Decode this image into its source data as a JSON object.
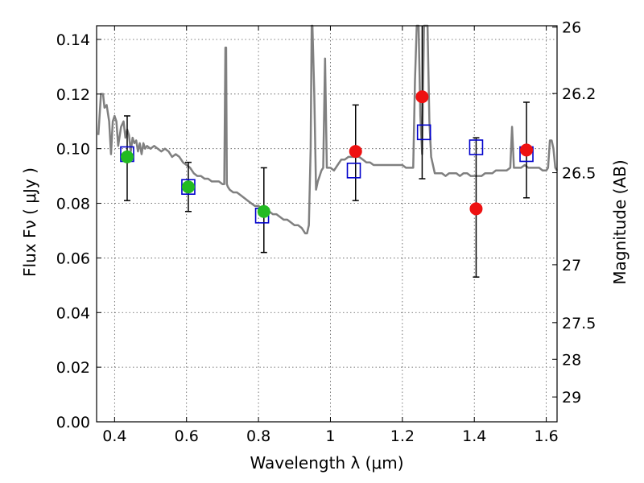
{
  "chart_data": {
    "type": "scatter",
    "title": "",
    "xlabel": "Wavelength  λ (μm)",
    "ylabel": "Flux  Fν  ( μJy )",
    "ylabel_right": "Magnitude (AB)",
    "xlim": [
      0.35,
      1.63
    ],
    "ylim": [
      0.0,
      0.145
    ],
    "grid": true,
    "x_ticks": [
      0.4,
      0.6,
      0.8,
      1.0,
      1.2,
      1.4,
      1.6
    ],
    "x_tick_labels": [
      "0.4",
      "0.6",
      "0.8",
      "1",
      "1.2",
      "1.4",
      "1.6"
    ],
    "y_ticks": [
      0.0,
      0.02,
      0.04,
      0.06,
      0.08,
      0.1,
      0.12,
      0.14
    ],
    "y_tick_labels": [
      "0.00",
      "0.02",
      "0.04",
      "0.06",
      "0.08",
      "0.10",
      "0.12",
      "0.14"
    ],
    "right_ticks": [
      {
        "label": "26",
        "flux": 0.1445
      },
      {
        "label": "26.2",
        "flux": 0.1202
      },
      {
        "label": "26.5",
        "flux": 0.0912
      },
      {
        "label": "27",
        "flux": 0.0575
      },
      {
        "label": "27.5",
        "flux": 0.0363
      },
      {
        "label": "28",
        "flux": 0.0229
      },
      {
        "label": "29",
        "flux": 0.0091
      }
    ],
    "colors": {
      "spectrum": "#808080",
      "model": "#0000cc",
      "green": "#22bb22",
      "red": "#ee1111",
      "grid": "#555555",
      "errorbar": "#000000"
    },
    "series": [
      {
        "name": "model template spectrum",
        "kind": "line",
        "x": [
          0.355,
          0.362,
          0.368,
          0.372,
          0.378,
          0.385,
          0.39,
          0.395,
          0.4,
          0.405,
          0.41,
          0.418,
          0.425,
          0.43,
          0.435,
          0.44,
          0.445,
          0.45,
          0.455,
          0.46,
          0.465,
          0.47,
          0.475,
          0.48,
          0.485,
          0.49,
          0.5,
          0.51,
          0.52,
          0.53,
          0.54,
          0.55,
          0.56,
          0.57,
          0.58,
          0.59,
          0.6,
          0.61,
          0.62,
          0.63,
          0.64,
          0.65,
          0.66,
          0.67,
          0.68,
          0.69,
          0.7,
          0.705,
          0.708,
          0.71,
          0.712,
          0.715,
          0.72,
          0.73,
          0.74,
          0.75,
          0.76,
          0.77,
          0.78,
          0.79,
          0.8,
          0.81,
          0.82,
          0.83,
          0.84,
          0.85,
          0.86,
          0.87,
          0.88,
          0.89,
          0.9,
          0.91,
          0.92,
          0.93,
          0.935,
          0.94,
          0.945,
          0.948,
          0.95,
          0.955,
          0.96,
          0.965,
          0.97,
          0.975,
          0.98,
          0.985,
          0.99,
          0.995,
          1.0,
          1.01,
          1.02,
          1.03,
          1.04,
          1.05,
          1.06,
          1.07,
          1.08,
          1.09,
          1.1,
          1.11,
          1.12,
          1.13,
          1.14,
          1.15,
          1.16,
          1.17,
          1.18,
          1.19,
          1.2,
          1.21,
          1.22,
          1.23,
          1.235,
          1.24,
          1.245,
          1.25,
          1.255,
          1.26,
          1.265,
          1.27,
          1.275,
          1.28,
          1.29,
          1.3,
          1.31,
          1.32,
          1.33,
          1.34,
          1.35,
          1.36,
          1.37,
          1.38,
          1.39,
          1.4,
          1.41,
          1.42,
          1.43,
          1.44,
          1.45,
          1.46,
          1.47,
          1.48,
          1.49,
          1.5,
          1.505,
          1.51,
          1.52,
          1.53,
          1.54,
          1.55,
          1.56,
          1.57,
          1.58,
          1.59,
          1.6,
          1.605,
          1.61,
          1.615,
          1.62,
          1.625,
          1.63
        ],
        "y": [
          0.105,
          0.12,
          0.12,
          0.115,
          0.116,
          0.11,
          0.098,
          0.11,
          0.112,
          0.11,
          0.101,
          0.108,
          0.11,
          0.104,
          0.107,
          0.105,
          0.099,
          0.104,
          0.102,
          0.103,
          0.099,
          0.102,
          0.098,
          0.102,
          0.1,
          0.101,
          0.1,
          0.101,
          0.1,
          0.099,
          0.1,
          0.099,
          0.097,
          0.098,
          0.097,
          0.095,
          0.094,
          0.093,
          0.091,
          0.09,
          0.09,
          0.089,
          0.089,
          0.088,
          0.088,
          0.088,
          0.087,
          0.087,
          0.137,
          0.137,
          0.087,
          0.086,
          0.085,
          0.084,
          0.084,
          0.083,
          0.082,
          0.081,
          0.08,
          0.079,
          0.079,
          0.078,
          0.077,
          0.077,
          0.076,
          0.076,
          0.075,
          0.074,
          0.074,
          0.073,
          0.072,
          0.072,
          0.071,
          0.069,
          0.069,
          0.072,
          0.1,
          0.145,
          0.145,
          0.12,
          0.085,
          0.088,
          0.09,
          0.092,
          0.093,
          0.133,
          0.093,
          0.093,
          0.093,
          0.092,
          0.094,
          0.096,
          0.096,
          0.097,
          0.097,
          0.097,
          0.097,
          0.096,
          0.095,
          0.095,
          0.094,
          0.094,
          0.094,
          0.094,
          0.094,
          0.094,
          0.094,
          0.094,
          0.094,
          0.093,
          0.093,
          0.093,
          0.125,
          0.145,
          0.145,
          0.112,
          0.098,
          0.145,
          0.145,
          0.145,
          0.11,
          0.097,
          0.091,
          0.091,
          0.091,
          0.09,
          0.091,
          0.091,
          0.091,
          0.09,
          0.091,
          0.091,
          0.09,
          0.09,
          0.09,
          0.09,
          0.091,
          0.091,
          0.091,
          0.092,
          0.092,
          0.092,
          0.092,
          0.093,
          0.108,
          0.093,
          0.093,
          0.093,
          0.094,
          0.093,
          0.093,
          0.093,
          0.093,
          0.092,
          0.092,
          0.093,
          0.103,
          0.103,
          0.1,
          0.093,
          0.092
        ]
      },
      {
        "name": "model photometry",
        "kind": "open-square",
        "x": [
          0.435,
          0.605,
          0.81,
          1.065,
          1.26,
          1.405,
          1.545
        ],
        "y": [
          0.098,
          0.086,
          0.0755,
          0.092,
          0.106,
          0.1005,
          0.098
        ]
      },
      {
        "name": "observed (green)",
        "kind": "circle",
        "x": [
          0.435,
          0.605,
          0.815
        ],
        "y": [
          0.097,
          0.086,
          0.077
        ],
        "yerr_low": [
          0.081,
          0.077,
          0.062
        ],
        "yerr_high": [
          0.112,
          0.095,
          0.093
        ]
      },
      {
        "name": "observed (red)",
        "kind": "circle",
        "x": [
          1.07,
          1.255,
          1.405,
          1.545
        ],
        "y": [
          0.099,
          0.119,
          0.078,
          0.0995
        ],
        "yerr_low": [
          0.081,
          0.089,
          0.053,
          0.082
        ],
        "yerr_high": [
          0.116,
          0.145,
          0.104,
          0.117
        ]
      }
    ]
  }
}
